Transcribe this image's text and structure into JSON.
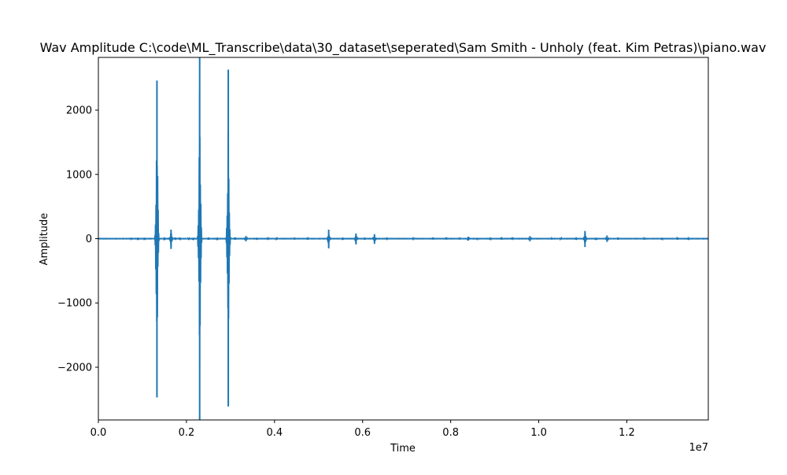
{
  "chart_data": {
    "type": "line",
    "title": "Wav Amplitude C:\\code\\ML_Transcribe\\data\\30_dataset\\seperated\\Sam Smith - Unholy (feat. Kim Petras)\\piano.wav",
    "xlabel": "Time",
    "ylabel": "Amplitude",
    "x_offset_text": "1e7",
    "xlim": [
      0,
      13850000
    ],
    "ylim": [
      -2820,
      2820
    ],
    "x_ticks": [
      {
        "value": 0,
        "label": "0.0"
      },
      {
        "value": 2000000,
        "label": "0.2"
      },
      {
        "value": 4000000,
        "label": "0.4"
      },
      {
        "value": 6000000,
        "label": "0.6"
      },
      {
        "value": 8000000,
        "label": "0.8"
      },
      {
        "value": 10000000,
        "label": "1.0"
      },
      {
        "value": 12000000,
        "label": "1.2"
      }
    ],
    "y_ticks": [
      {
        "value": 2000,
        "label": "2000"
      },
      {
        "value": 1000,
        "label": "1000"
      },
      {
        "value": 0,
        "label": "0"
      },
      {
        "value": -1000,
        "label": "−1000"
      },
      {
        "value": -2000,
        "label": "−2000"
      }
    ],
    "series_color": "#1f77b4",
    "grid": false,
    "bursts": [
      {
        "x": 1330000,
        "max": 2460,
        "min": -2470
      },
      {
        "x": 1650000,
        "max": 140,
        "min": -160
      },
      {
        "x": 2300000,
        "max": 2820,
        "min": -2820
      },
      {
        "x": 2950000,
        "max": 2630,
        "min": -2610
      },
      {
        "x": 3350000,
        "max": 40,
        "min": -40
      },
      {
        "x": 5230000,
        "max": 140,
        "min": -150
      },
      {
        "x": 5850000,
        "max": 80,
        "min": -90
      },
      {
        "x": 6270000,
        "max": 70,
        "min": -80
      },
      {
        "x": 8400000,
        "max": 30,
        "min": -30
      },
      {
        "x": 9800000,
        "max": 40,
        "min": -40
      },
      {
        "x": 11050000,
        "max": 120,
        "min": -130
      },
      {
        "x": 11550000,
        "max": 50,
        "min": -50
      }
    ],
    "small_events": [
      750000,
      900000,
      1050000,
      1500000,
      1750000,
      1850000,
      2050000,
      2150000,
      2500000,
      2700000,
      3100000,
      3600000,
      3850000,
      4050000,
      4450000,
      4750000,
      5550000,
      6050000,
      6550000,
      7150000,
      7600000,
      7900000,
      8200000,
      8600000,
      8900000,
      9150000,
      9400000,
      10300000,
      10500000,
      10850000,
      11300000,
      11800000,
      12400000,
      12800000,
      13150000,
      13400000
    ]
  }
}
